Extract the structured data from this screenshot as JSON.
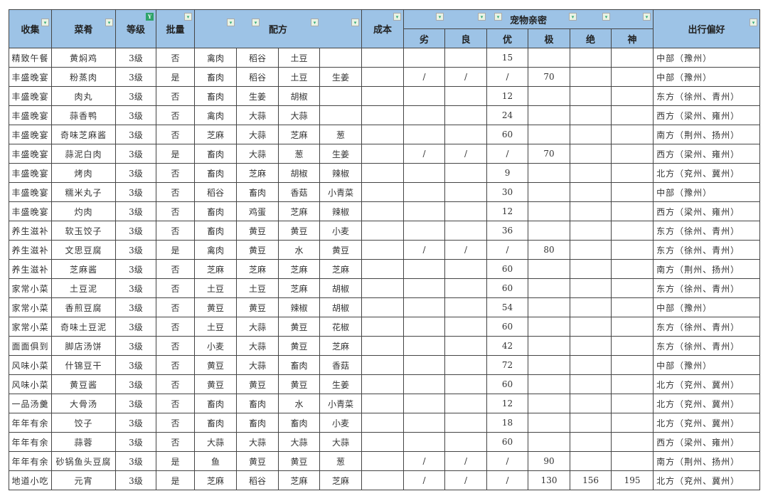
{
  "header": {
    "collection": "收集",
    "dish": "菜肴",
    "grade": "等级",
    "batch": "批量",
    "recipe": "配方",
    "cost": "成本",
    "affinity": "宠物亲密",
    "affinity_levels": [
      "劣",
      "良",
      "优",
      "极",
      "绝",
      "神"
    ],
    "travel": "出行偏好"
  },
  "colors": {
    "header_bg": "#9dc3e6",
    "border": "#444444",
    "filter_active": "#2fa36a"
  },
  "rows": [
    {
      "collection": "精致午餐",
      "dish": "黄焖鸡",
      "grade": "3级",
      "batch": "否",
      "ingredients": [
        "禽肉",
        "稻谷",
        "土豆",
        ""
      ],
      "cost": "",
      "affinity": [
        "",
        "",
        "15",
        "",
        "",
        ""
      ],
      "travel": "中部（豫州）"
    },
    {
      "collection": "丰盛晚宴",
      "dish": "粉蒸肉",
      "grade": "3级",
      "batch": "是",
      "ingredients": [
        "畜肉",
        "稻谷",
        "土豆",
        "生姜"
      ],
      "cost": "",
      "affinity": [
        "/",
        "/",
        "/",
        "70",
        "",
        ""
      ],
      "travel": "中部（豫州）"
    },
    {
      "collection": "丰盛晚宴",
      "dish": "肉丸",
      "grade": "3级",
      "batch": "否",
      "ingredients": [
        "畜肉",
        "生姜",
        "胡椒",
        ""
      ],
      "cost": "",
      "affinity": [
        "",
        "",
        "12",
        "",
        "",
        ""
      ],
      "travel": "东方（徐州、青州）"
    },
    {
      "collection": "丰盛晚宴",
      "dish": "蒜香鸭",
      "grade": "3级",
      "batch": "否",
      "ingredients": [
        "禽肉",
        "大蒜",
        "大蒜",
        ""
      ],
      "cost": "",
      "affinity": [
        "",
        "",
        "24",
        "",
        "",
        ""
      ],
      "travel": "西方（梁州、雍州）"
    },
    {
      "collection": "丰盛晚宴",
      "dish": "奇味芝麻酱",
      "grade": "3级",
      "batch": "否",
      "ingredients": [
        "芝麻",
        "大蒜",
        "芝麻",
        "葱"
      ],
      "cost": "",
      "affinity": [
        "",
        "",
        "60",
        "",
        "",
        ""
      ],
      "travel": "南方（荆州、扬州）"
    },
    {
      "collection": "丰盛晚宴",
      "dish": "蒜泥白肉",
      "grade": "3级",
      "batch": "是",
      "ingredients": [
        "畜肉",
        "大蒜",
        "葱",
        "生姜"
      ],
      "cost": "",
      "affinity": [
        "/",
        "/",
        "/",
        "70",
        "",
        ""
      ],
      "travel": "西方（梁州、雍州）"
    },
    {
      "collection": "丰盛晚宴",
      "dish": "烤肉",
      "grade": "3级",
      "batch": "否",
      "ingredients": [
        "畜肉",
        "芝麻",
        "胡椒",
        "辣椒"
      ],
      "cost": "",
      "affinity": [
        "",
        "",
        "9",
        "",
        "",
        ""
      ],
      "travel": "北方（兖州、冀州）"
    },
    {
      "collection": "丰盛晚宴",
      "dish": "糯米丸子",
      "grade": "3级",
      "batch": "否",
      "ingredients": [
        "稻谷",
        "畜肉",
        "香菇",
        "小青菜"
      ],
      "cost": "",
      "affinity": [
        "",
        "",
        "30",
        "",
        "",
        ""
      ],
      "travel": "中部（豫州）"
    },
    {
      "collection": "丰盛晚宴",
      "dish": "灼肉",
      "grade": "3级",
      "batch": "否",
      "ingredients": [
        "畜肉",
        "鸡蛋",
        "芝麻",
        "辣椒"
      ],
      "cost": "",
      "affinity": [
        "",
        "",
        "12",
        "",
        "",
        ""
      ],
      "travel": "西方（梁州、雍州）"
    },
    {
      "collection": "养生滋补",
      "dish": "软玉饺子",
      "grade": "3级",
      "batch": "否",
      "ingredients": [
        "畜肉",
        "黄豆",
        "黄豆",
        "小麦"
      ],
      "cost": "",
      "affinity": [
        "",
        "",
        "36",
        "",
        "",
        ""
      ],
      "travel": "东方（徐州、青州）"
    },
    {
      "collection": "养生滋补",
      "dish": "文思豆腐",
      "grade": "3级",
      "batch": "是",
      "ingredients": [
        "禽肉",
        "黄豆",
        "水",
        "黄豆"
      ],
      "cost": "",
      "affinity": [
        "/",
        "/",
        "/",
        "80",
        "",
        ""
      ],
      "travel": "东方（徐州、青州）"
    },
    {
      "collection": "养生滋补",
      "dish": "芝麻酱",
      "grade": "3级",
      "batch": "否",
      "ingredients": [
        "芝麻",
        "芝麻",
        "芝麻",
        "芝麻"
      ],
      "cost": "",
      "affinity": [
        "",
        "",
        "60",
        "",
        "",
        ""
      ],
      "travel": "南方（荆州、扬州）"
    },
    {
      "collection": "家常小菜",
      "dish": "土豆泥",
      "grade": "3级",
      "batch": "否",
      "ingredients": [
        "土豆",
        "土豆",
        "芝麻",
        "胡椒"
      ],
      "cost": "",
      "affinity": [
        "",
        "",
        "60",
        "",
        "",
        ""
      ],
      "travel": "东方（徐州、青州）"
    },
    {
      "collection": "家常小菜",
      "dish": "香煎豆腐",
      "grade": "3级",
      "batch": "否",
      "ingredients": [
        "黄豆",
        "黄豆",
        "辣椒",
        "胡椒"
      ],
      "cost": "",
      "affinity": [
        "",
        "",
        "54",
        "",
        "",
        ""
      ],
      "travel": "中部（豫州）"
    },
    {
      "collection": "家常小菜",
      "dish": "奇味土豆泥",
      "grade": "3级",
      "batch": "否",
      "ingredients": [
        "土豆",
        "大蒜",
        "黄豆",
        "花椒"
      ],
      "cost": "",
      "affinity": [
        "",
        "",
        "60",
        "",
        "",
        ""
      ],
      "travel": "东方（徐州、青州）"
    },
    {
      "collection": "面面俱到",
      "dish": "脚店汤饼",
      "grade": "3级",
      "batch": "否",
      "ingredients": [
        "小麦",
        "大蒜",
        "黄豆",
        "芝麻"
      ],
      "cost": "",
      "affinity": [
        "",
        "",
        "42",
        "",
        "",
        ""
      ],
      "travel": "东方（徐州、青州）"
    },
    {
      "collection": "风味小菜",
      "dish": "什锦豆干",
      "grade": "3级",
      "batch": "否",
      "ingredients": [
        "黄豆",
        "大蒜",
        "畜肉",
        "香菇"
      ],
      "cost": "",
      "affinity": [
        "",
        "",
        "72",
        "",
        "",
        ""
      ],
      "travel": "中部（豫州）"
    },
    {
      "collection": "风味小菜",
      "dish": "黄豆酱",
      "grade": "3级",
      "batch": "否",
      "ingredients": [
        "黄豆",
        "黄豆",
        "黄豆",
        "生姜"
      ],
      "cost": "",
      "affinity": [
        "",
        "",
        "60",
        "",
        "",
        ""
      ],
      "travel": "北方（兖州、冀州）"
    },
    {
      "collection": "一品汤羹",
      "dish": "大骨汤",
      "grade": "3级",
      "batch": "否",
      "ingredients": [
        "畜肉",
        "畜肉",
        "水",
        "小青菜"
      ],
      "cost": "",
      "affinity": [
        "",
        "",
        "12",
        "",
        "",
        ""
      ],
      "travel": "北方（兖州、冀州）"
    },
    {
      "collection": "年年有余",
      "dish": "饺子",
      "grade": "3级",
      "batch": "否",
      "ingredients": [
        "畜肉",
        "畜肉",
        "畜肉",
        "小麦"
      ],
      "cost": "",
      "affinity": [
        "",
        "",
        "18",
        "",
        "",
        ""
      ],
      "travel": "北方（兖州、冀州）"
    },
    {
      "collection": "年年有余",
      "dish": "蒜蓉",
      "grade": "3级",
      "batch": "否",
      "ingredients": [
        "大蒜",
        "大蒜",
        "大蒜",
        "大蒜"
      ],
      "cost": "",
      "affinity": [
        "",
        "",
        "60",
        "",
        "",
        ""
      ],
      "travel": "西方（梁州、雍州）"
    },
    {
      "collection": "年年有余",
      "dish": "砂锅鱼头豆腐",
      "grade": "3级",
      "batch": "是",
      "ingredients": [
        "鱼",
        "黄豆",
        "黄豆",
        "葱"
      ],
      "cost": "",
      "affinity": [
        "/",
        "/",
        "/",
        "90",
        "",
        ""
      ],
      "travel": "南方（荆州、扬州）"
    },
    {
      "collection": "地道小吃",
      "dish": "元宵",
      "grade": "3级",
      "batch": "是",
      "ingredients": [
        "芝麻",
        "稻谷",
        "芝麻",
        "芝麻"
      ],
      "cost": "",
      "affinity": [
        "/",
        "/",
        "/",
        "130",
        "156",
        "195"
      ],
      "travel": "北方（兖州、冀州）"
    }
  ]
}
